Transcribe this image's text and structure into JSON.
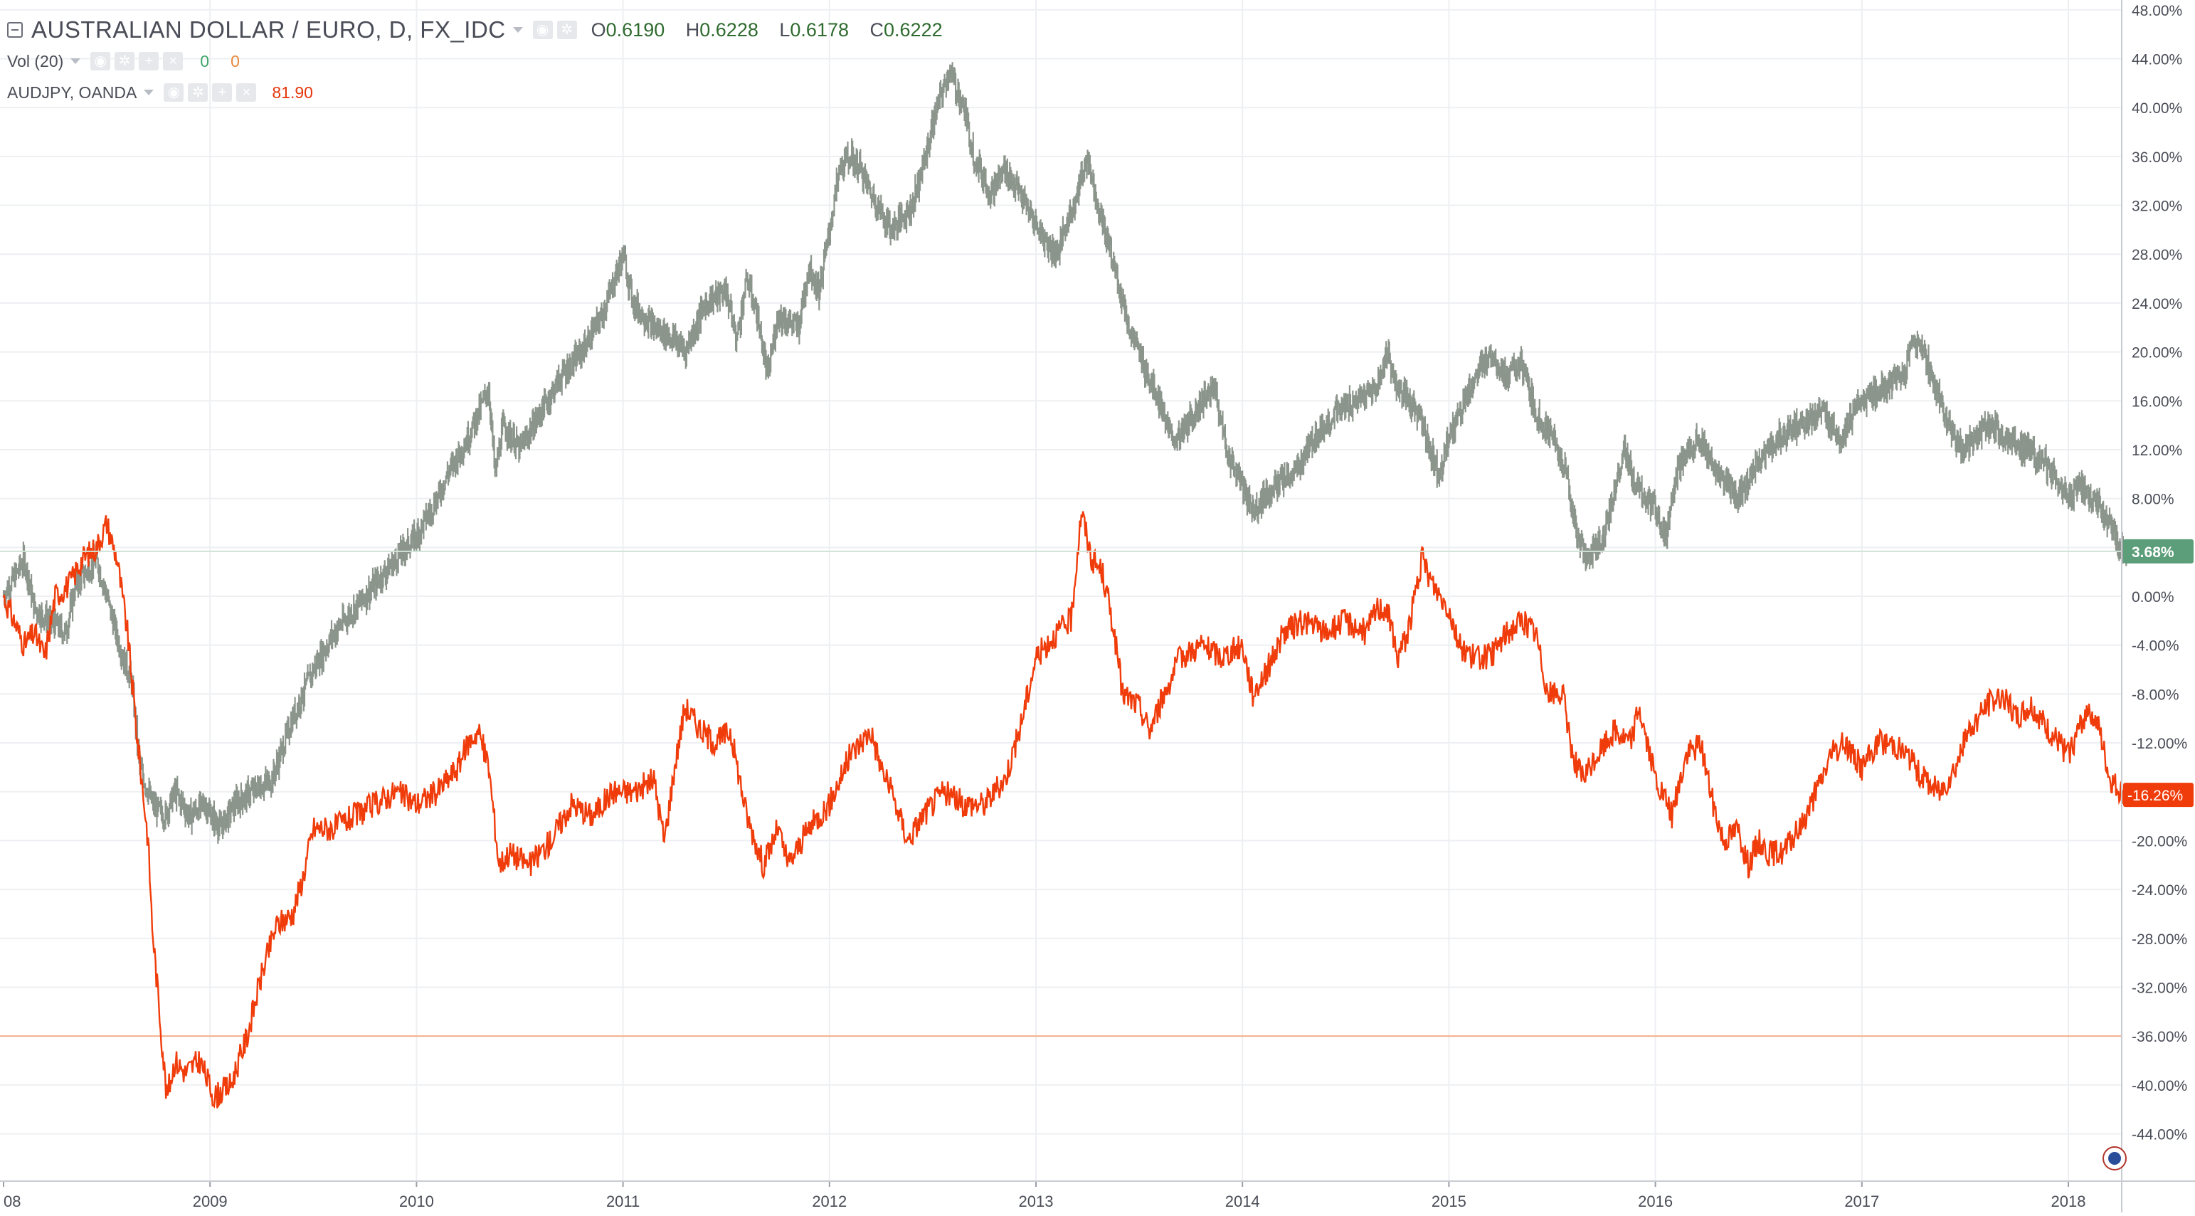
{
  "legend": {
    "main_title": "AUSTRALIAN DOLLAR / EURO, D, FX_IDC",
    "ohlc": [
      {
        "key": "O",
        "value": "0.6190"
      },
      {
        "key": "H",
        "value": "0.6228"
      },
      {
        "key": "L",
        "value": "0.6178"
      },
      {
        "key": "C",
        "value": "0.6222"
      }
    ],
    "volume_label": "Vol (20)",
    "volume_values": [
      "0",
      "0"
    ],
    "compare_label": "AUDJPY, OANDA",
    "compare_value": "81.90"
  },
  "colors": {
    "audeur_candles": "#7f8a80",
    "audjpy_line": "#f03c0a",
    "last_value_green": "#5c9e79",
    "last_value_red": "#f03c0a",
    "reference_line": "#f5b08a",
    "grid": "#eeeff2"
  },
  "chart_data": {
    "type": "line",
    "scale": "percent",
    "x_ticks": [
      "08",
      "2009",
      "2010",
      "2011",
      "2012",
      "2013",
      "2014",
      "2015",
      "2016",
      "2017",
      "2018"
    ],
    "y_ticks": [
      "48.00%",
      "44.00%",
      "40.00%",
      "36.00%",
      "32.00%",
      "28.00%",
      "24.00%",
      "20.00%",
      "16.00%",
      "12.00%",
      "8.00%",
      "4.00%",
      "0.00%",
      "-4.00%",
      "-8.00%",
      "-12.00%",
      "-16.00%",
      "-20.00%",
      "-24.00%",
      "-28.00%",
      "-32.00%",
      "-36.00%",
      "-40.00%",
      "-44.00%"
    ],
    "ylim": [
      -48,
      48
    ],
    "grid": true,
    "reference_line": -36,
    "series": [
      {
        "name": "AUSTRALIAN DOLLAR / EURO, D, FX_IDC",
        "style": "candles",
        "last_value": 3.68,
        "last_label": "3.68%",
        "points": [
          [
            2008.0,
            0
          ],
          [
            2008.1,
            3
          ],
          [
            2008.15,
            -1
          ],
          [
            2008.22,
            -2
          ],
          [
            2008.3,
            -3
          ],
          [
            2008.35,
            1
          ],
          [
            2008.45,
            3
          ],
          [
            2008.5,
            0
          ],
          [
            2008.56,
            -4
          ],
          [
            2008.62,
            -7
          ],
          [
            2008.66,
            -14
          ],
          [
            2008.72,
            -17
          ],
          [
            2008.78,
            -18
          ],
          [
            2008.83,
            -16
          ],
          [
            2008.9,
            -18
          ],
          [
            2008.97,
            -17
          ],
          [
            2009.05,
            -19
          ],
          [
            2009.12,
            -17
          ],
          [
            2009.2,
            -16
          ],
          [
            2009.3,
            -15
          ],
          [
            2009.4,
            -10
          ],
          [
            2009.5,
            -6
          ],
          [
            2009.6,
            -3
          ],
          [
            2009.7,
            -1
          ],
          [
            2009.8,
            1
          ],
          [
            2009.9,
            3
          ],
          [
            2010.0,
            5
          ],
          [
            2010.1,
            8
          ],
          [
            2010.15,
            10
          ],
          [
            2010.25,
            13
          ],
          [
            2010.35,
            17
          ],
          [
            2010.38,
            10
          ],
          [
            2010.42,
            14
          ],
          [
            2010.5,
            12
          ],
          [
            2010.6,
            15
          ],
          [
            2010.7,
            18
          ],
          [
            2010.8,
            20
          ],
          [
            2010.9,
            23
          ],
          [
            2011.0,
            28
          ],
          [
            2011.05,
            24
          ],
          [
            2011.15,
            22
          ],
          [
            2011.25,
            21
          ],
          [
            2011.3,
            20
          ],
          [
            2011.4,
            24
          ],
          [
            2011.5,
            25
          ],
          [
            2011.55,
            21
          ],
          [
            2011.6,
            26
          ],
          [
            2011.65,
            23
          ],
          [
            2011.7,
            18
          ],
          [
            2011.75,
            23
          ],
          [
            2011.85,
            22
          ],
          [
            2011.9,
            27
          ],
          [
            2011.95,
            25
          ],
          [
            2012.05,
            35
          ],
          [
            2012.1,
            36
          ],
          [
            2012.15,
            35
          ],
          [
            2012.2,
            33
          ],
          [
            2012.3,
            30
          ],
          [
            2012.4,
            32
          ],
          [
            2012.45,
            35
          ],
          [
            2012.52,
            40
          ],
          [
            2012.58,
            43
          ],
          [
            2012.65,
            40
          ],
          [
            2012.7,
            36
          ],
          [
            2012.78,
            33
          ],
          [
            2012.85,
            35
          ],
          [
            2012.92,
            33
          ],
          [
            2012.98,
            31
          ],
          [
            2013.05,
            29
          ],
          [
            2013.1,
            28
          ],
          [
            2013.2,
            33
          ],
          [
            2013.25,
            36
          ],
          [
            2013.3,
            32
          ],
          [
            2013.38,
            27
          ],
          [
            2013.45,
            22
          ],
          [
            2013.52,
            19
          ],
          [
            2013.6,
            16
          ],
          [
            2013.65,
            13
          ],
          [
            2013.7,
            13
          ],
          [
            2013.8,
            16
          ],
          [
            2013.87,
            17
          ],
          [
            2013.92,
            12
          ],
          [
            2014.0,
            9
          ],
          [
            2014.05,
            7
          ],
          [
            2014.15,
            9
          ],
          [
            2014.25,
            10
          ],
          [
            2014.35,
            13
          ],
          [
            2014.45,
            15
          ],
          [
            2014.55,
            16
          ],
          [
            2014.65,
            17
          ],
          [
            2014.7,
            20
          ],
          [
            2014.75,
            17
          ],
          [
            2014.85,
            15
          ],
          [
            2014.95,
            10
          ],
          [
            2015.0,
            13
          ],
          [
            2015.1,
            17
          ],
          [
            2015.2,
            20
          ],
          [
            2015.28,
            18
          ],
          [
            2015.35,
            19
          ],
          [
            2015.42,
            15
          ],
          [
            2015.5,
            13
          ],
          [
            2015.57,
            10
          ],
          [
            2015.62,
            5
          ],
          [
            2015.67,
            3
          ],
          [
            2015.75,
            5
          ],
          [
            2015.85,
            12
          ],
          [
            2015.9,
            9
          ],
          [
            2016.0,
            7
          ],
          [
            2016.05,
            5
          ],
          [
            2016.1,
            10
          ],
          [
            2016.2,
            13
          ],
          [
            2016.3,
            10
          ],
          [
            2016.4,
            8
          ],
          [
            2016.5,
            11
          ],
          [
            2016.6,
            13
          ],
          [
            2016.7,
            14
          ],
          [
            2016.8,
            15
          ],
          [
            2016.9,
            13
          ],
          [
            2017.0,
            16
          ],
          [
            2017.1,
            17
          ],
          [
            2017.2,
            18
          ],
          [
            2017.25,
            21
          ],
          [
            2017.3,
            20
          ],
          [
            2017.38,
            16
          ],
          [
            2017.45,
            13
          ],
          [
            2017.5,
            12
          ],
          [
            2017.6,
            14
          ],
          [
            2017.7,
            13
          ],
          [
            2017.8,
            12
          ],
          [
            2017.88,
            11
          ],
          [
            2017.95,
            9
          ],
          [
            2018.0,
            8
          ],
          [
            2018.05,
            9
          ],
          [
            2018.12,
            8
          ],
          [
            2018.2,
            6
          ],
          [
            2018.25,
            4
          ],
          [
            2018.28,
            3.68
          ]
        ]
      },
      {
        "name": "AUDJPY, OANDA",
        "style": "line",
        "last_value": -16.26,
        "last_label": "-16.26%",
        "points": [
          [
            2008.0,
            0
          ],
          [
            2008.05,
            -2
          ],
          [
            2008.1,
            -4
          ],
          [
            2008.15,
            -3
          ],
          [
            2008.2,
            -5
          ],
          [
            2008.25,
            0
          ],
          [
            2008.32,
            1
          ],
          [
            2008.38,
            3
          ],
          [
            2008.45,
            4
          ],
          [
            2008.5,
            6
          ],
          [
            2008.55,
            3
          ],
          [
            2008.6,
            -3
          ],
          [
            2008.65,
            -12
          ],
          [
            2008.7,
            -20
          ],
          [
            2008.72,
            -27
          ],
          [
            2008.76,
            -35
          ],
          [
            2008.79,
            -41
          ],
          [
            2008.83,
            -38
          ],
          [
            2008.88,
            -39
          ],
          [
            2008.95,
            -38
          ],
          [
            2009.02,
            -41
          ],
          [
            2009.1,
            -40
          ],
          [
            2009.18,
            -36
          ],
          [
            2009.25,
            -31
          ],
          [
            2009.32,
            -27
          ],
          [
            2009.4,
            -26
          ],
          [
            2009.45,
            -23
          ],
          [
            2009.5,
            -19
          ],
          [
            2009.6,
            -19
          ],
          [
            2009.7,
            -18
          ],
          [
            2009.8,
            -17
          ],
          [
            2009.9,
            -16
          ],
          [
            2010.0,
            -17
          ],
          [
            2010.1,
            -16
          ],
          [
            2010.2,
            -14
          ],
          [
            2010.25,
            -12
          ],
          [
            2010.3,
            -11
          ],
          [
            2010.35,
            -14
          ],
          [
            2010.4,
            -22
          ],
          [
            2010.45,
            -21
          ],
          [
            2010.55,
            -22
          ],
          [
            2010.65,
            -20
          ],
          [
            2010.75,
            -17
          ],
          [
            2010.85,
            -18
          ],
          [
            2010.95,
            -16
          ],
          [
            2011.05,
            -16
          ],
          [
            2011.15,
            -15
          ],
          [
            2011.2,
            -20
          ],
          [
            2011.25,
            -14
          ],
          [
            2011.3,
            -9
          ],
          [
            2011.38,
            -11
          ],
          [
            2011.45,
            -12
          ],
          [
            2011.52,
            -11
          ],
          [
            2011.6,
            -18
          ],
          [
            2011.68,
            -22
          ],
          [
            2011.75,
            -19
          ],
          [
            2011.8,
            -22
          ],
          [
            2011.9,
            -19
          ],
          [
            2012.0,
            -17
          ],
          [
            2012.1,
            -13
          ],
          [
            2012.2,
            -11
          ],
          [
            2012.25,
            -14
          ],
          [
            2012.3,
            -16
          ],
          [
            2012.38,
            -20
          ],
          [
            2012.45,
            -18
          ],
          [
            2012.55,
            -16
          ],
          [
            2012.65,
            -17
          ],
          [
            2012.75,
            -17
          ],
          [
            2012.85,
            -15
          ],
          [
            2012.92,
            -11
          ],
          [
            2013.0,
            -5
          ],
          [
            2013.1,
            -3
          ],
          [
            2013.17,
            -2
          ],
          [
            2013.22,
            7
          ],
          [
            2013.27,
            3
          ],
          [
            2013.32,
            2
          ],
          [
            2013.37,
            -2
          ],
          [
            2013.42,
            -8
          ],
          [
            2013.5,
            -9
          ],
          [
            2013.55,
            -11
          ],
          [
            2013.62,
            -8
          ],
          [
            2013.7,
            -5
          ],
          [
            2013.8,
            -4
          ],
          [
            2013.9,
            -5
          ],
          [
            2014.0,
            -4
          ],
          [
            2014.05,
            -8
          ],
          [
            2014.12,
            -6
          ],
          [
            2014.2,
            -3
          ],
          [
            2014.3,
            -2
          ],
          [
            2014.4,
            -3
          ],
          [
            2014.5,
            -2
          ],
          [
            2014.6,
            -3
          ],
          [
            2014.65,
            -1
          ],
          [
            2014.7,
            -1
          ],
          [
            2014.75,
            -5
          ],
          [
            2014.8,
            -3
          ],
          [
            2014.87,
            3
          ],
          [
            2014.92,
            1
          ],
          [
            2015.0,
            -1
          ],
          [
            2015.05,
            -4
          ],
          [
            2015.12,
            -5
          ],
          [
            2015.2,
            -5
          ],
          [
            2015.28,
            -3
          ],
          [
            2015.35,
            -2
          ],
          [
            2015.42,
            -3
          ],
          [
            2015.48,
            -8
          ],
          [
            2015.55,
            -8
          ],
          [
            2015.6,
            -13
          ],
          [
            2015.65,
            -15
          ],
          [
            2015.72,
            -13
          ],
          [
            2015.8,
            -11
          ],
          [
            2015.88,
            -12
          ],
          [
            2015.92,
            -9
          ],
          [
            2016.0,
            -15
          ],
          [
            2016.08,
            -18
          ],
          [
            2016.15,
            -13
          ],
          [
            2016.22,
            -12
          ],
          [
            2016.28,
            -17
          ],
          [
            2016.33,
            -20
          ],
          [
            2016.4,
            -19
          ],
          [
            2016.45,
            -22
          ],
          [
            2016.5,
            -20
          ],
          [
            2016.55,
            -21
          ],
          [
            2016.62,
            -21
          ],
          [
            2016.7,
            -19
          ],
          [
            2016.78,
            -16
          ],
          [
            2016.85,
            -13
          ],
          [
            2016.92,
            -12
          ],
          [
            2017.0,
            -14
          ],
          [
            2017.08,
            -12
          ],
          [
            2017.15,
            -12
          ],
          [
            2017.22,
            -13
          ],
          [
            2017.3,
            -15
          ],
          [
            2017.38,
            -16
          ],
          [
            2017.45,
            -14
          ],
          [
            2017.52,
            -11
          ],
          [
            2017.6,
            -9
          ],
          [
            2017.68,
            -8
          ],
          [
            2017.75,
            -10
          ],
          [
            2017.82,
            -9
          ],
          [
            2017.9,
            -11
          ],
          [
            2018.0,
            -13
          ],
          [
            2018.05,
            -11
          ],
          [
            2018.1,
            -9
          ],
          [
            2018.15,
            -11
          ],
          [
            2018.2,
            -15
          ],
          [
            2018.25,
            -16
          ],
          [
            2018.28,
            -16.26
          ]
        ]
      }
    ]
  }
}
